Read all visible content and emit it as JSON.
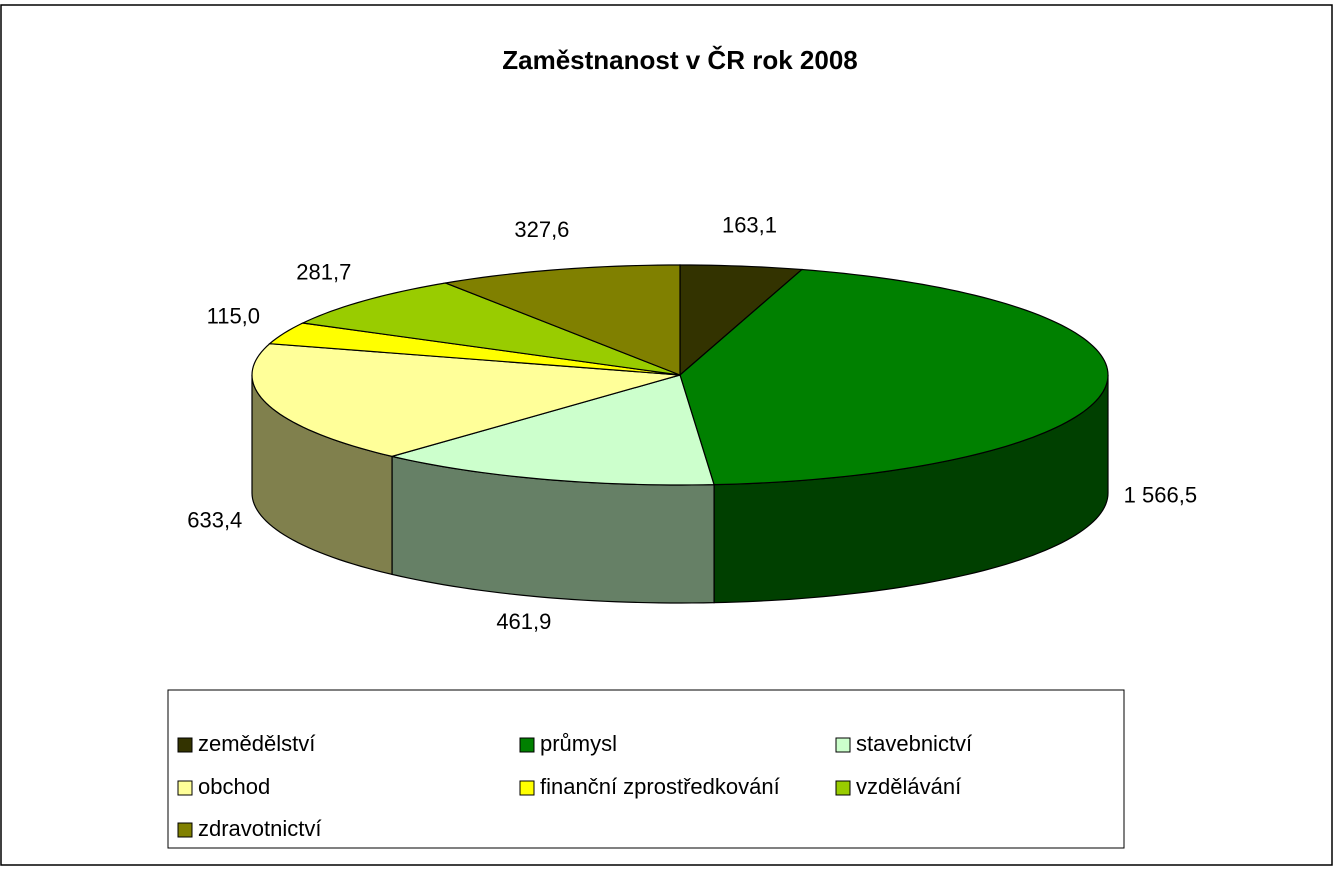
{
  "chart_data": {
    "type": "pie",
    "title": "Zaměstnanost v ČR rok 2008",
    "categories": [
      "zemědělství",
      "průmysl",
      "stavebnictví",
      "obchod",
      "finanční zprostředkování",
      "vzdělávání",
      "zdravotnictví"
    ],
    "values": [
      163.1,
      1566.5,
      461.9,
      633.4,
      115.0,
      281.7,
      327.6
    ],
    "value_labels": [
      "163,1",
      "1 566,5",
      "461,9",
      "633,4",
      "115,0",
      "281,7",
      "327,6"
    ],
    "colors": [
      "#333300",
      "#008000",
      "#ccffcc",
      "#ffff99",
      "#ffff00",
      "#99cc00",
      "#808000"
    ]
  }
}
